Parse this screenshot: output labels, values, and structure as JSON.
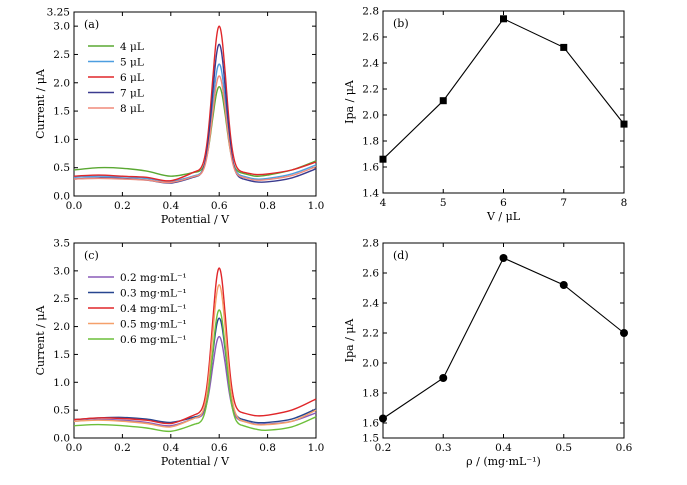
{
  "chart_data": [
    {
      "id": "a",
      "type": "line",
      "panel_label": "(a)",
      "xlabel": "Potential / V",
      "ylabel": "Current / μA",
      "xlim": [
        0.0,
        1.0
      ],
      "ylim": [
        0.0,
        3.25
      ],
      "xticks": [
        "0.0",
        "0.2",
        "0.4",
        "0.6",
        "0.8",
        "1.0"
      ],
      "yticks": [
        "0.0",
        "0.5",
        "1.0",
        "1.5",
        "2.0",
        "2.5",
        "3.0",
        "3.25"
      ],
      "legend_position": "upper-left",
      "peak_x": 0.6,
      "series": [
        {
          "name": "4 μL",
          "color": "#5aa832",
          "baseline": 0.5,
          "end": 0.62,
          "peak": 1.93,
          "pre": [
            [
              0.0,
              0.46
            ],
            [
              0.1,
              0.5
            ],
            [
              0.2,
              0.49
            ],
            [
              0.3,
              0.44
            ],
            [
              0.4,
              0.35
            ],
            [
              0.5,
              0.42
            ]
          ],
          "post": [
            [
              0.7,
              0.4
            ],
            [
              0.75,
              0.35
            ],
            [
              0.8,
              0.37
            ],
            [
              0.9,
              0.46
            ],
            [
              1.0,
              0.62
            ]
          ]
        },
        {
          "name": "5 μL",
          "color": "#4d9ee0",
          "baseline": 0.35,
          "end": 0.55,
          "peak": 2.33,
          "pre": [
            [
              0.0,
              0.33
            ],
            [
              0.1,
              0.35
            ],
            [
              0.2,
              0.34
            ],
            [
              0.3,
              0.31
            ],
            [
              0.4,
              0.26
            ],
            [
              0.5,
              0.36
            ]
          ],
          "post": [
            [
              0.7,
              0.35
            ],
            [
              0.75,
              0.3
            ],
            [
              0.8,
              0.31
            ],
            [
              0.9,
              0.39
            ],
            [
              1.0,
              0.55
            ]
          ]
        },
        {
          "name": "6 μL",
          "color": "#e0262a",
          "baseline": 0.35,
          "end": 0.6,
          "peak": 3.0,
          "pre": [
            [
              0.0,
              0.35
            ],
            [
              0.1,
              0.37
            ],
            [
              0.2,
              0.35
            ],
            [
              0.3,
              0.33
            ],
            [
              0.4,
              0.27
            ],
            [
              0.5,
              0.43
            ]
          ],
          "post": [
            [
              0.7,
              0.42
            ],
            [
              0.75,
              0.38
            ],
            [
              0.8,
              0.39
            ],
            [
              0.9,
              0.46
            ],
            [
              1.0,
              0.6
            ]
          ]
        },
        {
          "name": "7 μL",
          "color": "#3b3b8f",
          "baseline": 0.33,
          "end": 0.48,
          "peak": 2.68,
          "pre": [
            [
              0.0,
              0.3
            ],
            [
              0.1,
              0.32
            ],
            [
              0.2,
              0.31
            ],
            [
              0.3,
              0.28
            ],
            [
              0.4,
              0.23
            ],
            [
              0.5,
              0.34
            ]
          ],
          "post": [
            [
              0.7,
              0.3
            ],
            [
              0.75,
              0.25
            ],
            [
              0.8,
              0.25
            ],
            [
              0.9,
              0.32
            ],
            [
              1.0,
              0.48
            ]
          ]
        },
        {
          "name": "8 μL",
          "color": "#f08a7a",
          "baseline": 0.32,
          "end": 0.52,
          "peak": 2.12,
          "pre": [
            [
              0.0,
              0.3
            ],
            [
              0.1,
              0.31
            ],
            [
              0.2,
              0.3
            ],
            [
              0.3,
              0.28
            ],
            [
              0.4,
              0.24
            ],
            [
              0.5,
              0.35
            ]
          ],
          "post": [
            [
              0.7,
              0.33
            ],
            [
              0.75,
              0.28
            ],
            [
              0.8,
              0.29
            ],
            [
              0.9,
              0.36
            ],
            [
              1.0,
              0.52
            ]
          ]
        }
      ]
    },
    {
      "id": "b",
      "type": "line",
      "panel_label": "(b)",
      "xlabel": "V / μL",
      "ylabel": "Ipa / μA",
      "xlim": [
        4,
        8
      ],
      "ylim": [
        1.4,
        2.8
      ],
      "xticks": [
        "4",
        "5",
        "6",
        "7",
        "8"
      ],
      "yticks": [
        "1.4",
        "1.6",
        "1.8",
        "2.0",
        "2.2",
        "2.4",
        "2.6",
        "2.8"
      ],
      "marker": "square",
      "x": [
        4,
        5,
        6,
        7,
        8
      ],
      "y": [
        1.66,
        2.11,
        2.74,
        2.52,
        1.93
      ]
    },
    {
      "id": "c",
      "type": "line",
      "panel_label": "(c)",
      "xlabel": "Potential / V",
      "ylabel": "Current / μA",
      "xlim": [
        0.0,
        1.0
      ],
      "ylim": [
        0.0,
        3.5
      ],
      "xticks": [
        "0.0",
        "0.2",
        "0.4",
        "0.6",
        "0.8",
        "1.0"
      ],
      "yticks": [
        "0.0",
        "0.5",
        "1.0",
        "1.5",
        "2.0",
        "2.5",
        "3.0",
        "3.5"
      ],
      "legend_position": "upper-left",
      "peak_x": 0.6,
      "series": [
        {
          "name": "0.2 mg·mL⁻¹",
          "color": "#8a5bb8",
          "peak": 1.82,
          "pre": [
            [
              0.0,
              0.3
            ],
            [
              0.1,
              0.33
            ],
            [
              0.2,
              0.32
            ],
            [
              0.3,
              0.28
            ],
            [
              0.4,
              0.22
            ],
            [
              0.5,
              0.36
            ]
          ],
          "post": [
            [
              0.7,
              0.3
            ],
            [
              0.75,
              0.25
            ],
            [
              0.8,
              0.25
            ],
            [
              0.9,
              0.3
            ],
            [
              1.0,
              0.45
            ]
          ]
        },
        {
          "name": "0.3 mg·mL⁻¹",
          "color": "#27458f",
          "peak": 2.15,
          "pre": [
            [
              0.0,
              0.33
            ],
            [
              0.1,
              0.36
            ],
            [
              0.2,
              0.37
            ],
            [
              0.3,
              0.34
            ],
            [
              0.4,
              0.28
            ],
            [
              0.5,
              0.38
            ]
          ],
          "post": [
            [
              0.7,
              0.33
            ],
            [
              0.75,
              0.28
            ],
            [
              0.8,
              0.28
            ],
            [
              0.9,
              0.34
            ],
            [
              1.0,
              0.52
            ]
          ]
        },
        {
          "name": "0.4 mg·mL⁻¹",
          "color": "#e0262a",
          "peak": 3.05,
          "pre": [
            [
              0.0,
              0.33
            ],
            [
              0.1,
              0.36
            ],
            [
              0.2,
              0.35
            ],
            [
              0.3,
              0.32
            ],
            [
              0.4,
              0.26
            ],
            [
              0.5,
              0.42
            ]
          ],
          "post": [
            [
              0.7,
              0.45
            ],
            [
              0.75,
              0.4
            ],
            [
              0.8,
              0.41
            ],
            [
              0.9,
              0.5
            ],
            [
              1.0,
              0.7
            ]
          ]
        },
        {
          "name": "0.5 mg·mL⁻¹",
          "color": "#f5a06a",
          "peak": 2.75,
          "pre": [
            [
              0.0,
              0.3
            ],
            [
              0.1,
              0.32
            ],
            [
              0.2,
              0.3
            ],
            [
              0.3,
              0.26
            ],
            [
              0.4,
              0.2
            ],
            [
              0.5,
              0.36
            ]
          ],
          "post": [
            [
              0.7,
              0.3
            ],
            [
              0.75,
              0.24
            ],
            [
              0.8,
              0.24
            ],
            [
              0.9,
              0.3
            ],
            [
              1.0,
              0.5
            ]
          ]
        },
        {
          "name": "0.6 mg·mL⁻¹",
          "color": "#6cbf3a",
          "peak": 2.3,
          "pre": [
            [
              0.0,
              0.22
            ],
            [
              0.1,
              0.24
            ],
            [
              0.2,
              0.22
            ],
            [
              0.3,
              0.18
            ],
            [
              0.4,
              0.12
            ],
            [
              0.5,
              0.25
            ]
          ],
          "post": [
            [
              0.7,
              0.22
            ],
            [
              0.75,
              0.16
            ],
            [
              0.8,
              0.14
            ],
            [
              0.9,
              0.2
            ],
            [
              1.0,
              0.38
            ]
          ]
        }
      ]
    },
    {
      "id": "d",
      "type": "line",
      "panel_label": "(d)",
      "xlabel": "ρ / (mg·mL⁻¹)",
      "ylabel": "Ipa / μA",
      "xlim": [
        0.2,
        0.6
      ],
      "ylim": [
        1.5,
        2.8
      ],
      "xticks": [
        "0.2",
        "0.3",
        "0.4",
        "0.5",
        "0.6"
      ],
      "yticks": [
        "1.5",
        "1.6",
        "1.8",
        "2.0",
        "2.2",
        "2.4",
        "2.6",
        "2.8"
      ],
      "marker": "circle",
      "x": [
        0.2,
        0.3,
        0.4,
        0.5,
        0.6
      ],
      "y": [
        1.63,
        1.9,
        2.7,
        2.52,
        2.2
      ]
    }
  ]
}
